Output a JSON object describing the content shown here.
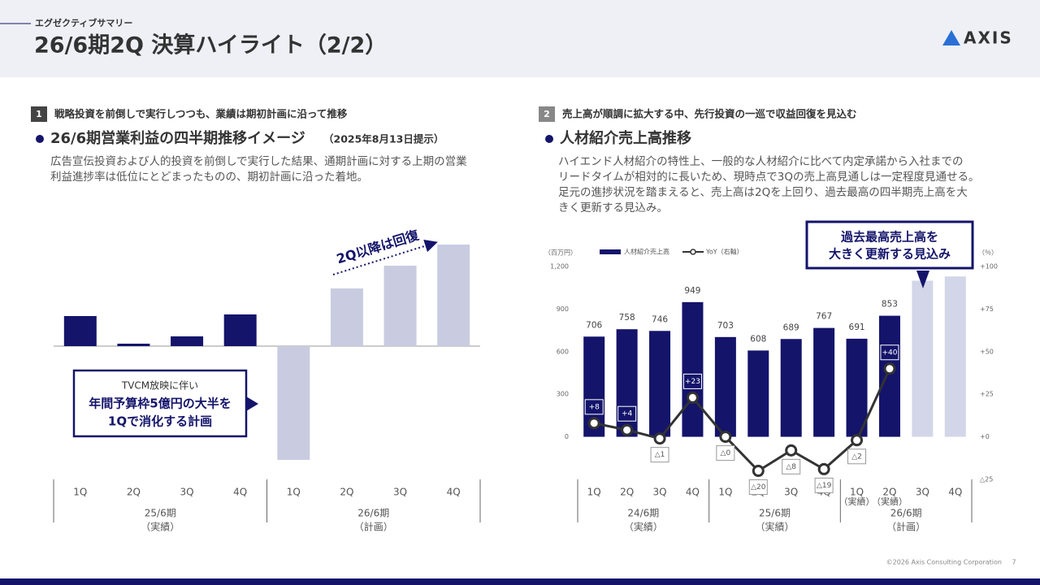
{
  "header": {
    "section": "エグゼクティブサマリー",
    "title": "26/6期2Q 決算ハイライト（2/2）",
    "logo": "AXIS"
  },
  "left": {
    "number": "1",
    "lead": "戦略投資を前倒しで実行しつつも、業績は期初計画に沿って推移",
    "heading": "26/6期営業利益の四半期推移イメージ",
    "heading_note": "（2025年8月13日提示）",
    "body": [
      "広告宣伝投資および人的投資を前倒しで実行した結果、通期計画に対する上期の営業",
      "利益進捗率は低位にとどまったものの、期初計画に沿った着地。"
    ]
  },
  "right": {
    "number": "2",
    "lead": "売上高が順調に拡大する中、先行投資の一巡で収益回復を見込む",
    "heading": "人材紹介売上高推移",
    "body": [
      "ハイエンド人材紹介の特性上、一般的な人材紹介に比べて内定承諾から入社までの",
      "リードタイムが相対的に長いため、現時点で3Qの売上高見通しは一定程度見通せる。",
      "足元の進捗状況を踏まえると、売上高は2Qを上回り、過去最高の四半期売上高を大",
      "きく更新する見込み。"
    ]
  },
  "chart_data": [
    {
      "type": "bar",
      "categories": [
        "1Q",
        "2Q",
        "3Q",
        "4Q",
        "1Q",
        "2Q",
        "3Q",
        "4Q"
      ],
      "values": [
        37,
        3,
        12,
        39,
        -140,
        71,
        99,
        125
      ],
      "colors": [
        "#14146b",
        "#14146b",
        "#14146b",
        "#14146b",
        "#c9cce0",
        "#c9cce0",
        "#c9cce0",
        "#c9cce0"
      ],
      "groups": [
        {
          "label": "25/6期",
          "note": "（実績）"
        },
        {
          "label": "26/6期",
          "note": "（計画）"
        }
      ],
      "trend_label": "2Q以降は回復",
      "callout": [
        "TVCM放映に伴い",
        "年間予算枠5億円の大半を",
        "1Qで消化する計画"
      ]
    },
    {
      "type": "bar-line",
      "categories": [
        "1Q",
        "2Q",
        "3Q",
        "4Q",
        "1Q",
        "2Q",
        "3Q",
        "4Q",
        "1Q",
        "2Q",
        "3Q",
        "4Q"
      ],
      "category_notes": [
        null,
        null,
        null,
        null,
        null,
        null,
        null,
        null,
        "（実績）",
        "（実績）",
        null,
        null
      ],
      "groups": [
        {
          "label": "24/6期",
          "note": "（実績）"
        },
        {
          "label": "25/6期",
          "note": "（実績）"
        },
        {
          "label": "26/6期",
          "note": "（計画）"
        }
      ],
      "series": [
        {
          "name": "人材紹介売上高",
          "type": "bar",
          "colors": [
            "#14146b",
            "#14146b",
            "#14146b",
            "#14146b",
            "#14146b",
            "#14146b",
            "#14146b",
            "#14146b",
            "#14146b",
            "#14146b",
            "#d3d6e8",
            "#d3d6e8"
          ],
          "values": [
            706,
            758,
            746,
            949,
            703,
            608,
            689,
            767,
            691,
            853,
            1100,
            1130
          ],
          "value_labels": [
            "706",
            "758",
            "746",
            "949",
            "703",
            "608",
            "689",
            "767",
            "691",
            "853",
            null,
            null
          ]
        },
        {
          "name": "YoY（右軸）",
          "type": "line",
          "axis": "y2",
          "color": "#333333",
          "values": [
            8,
            4,
            -1,
            23,
            0,
            -20,
            -8,
            -19,
            -2,
            40,
            null,
            null
          ],
          "value_labels": [
            "+8",
            "+4",
            "△1",
            "+23",
            "△0",
            "△20",
            "△8",
            "△19",
            "△2",
            "+40",
            null,
            null
          ]
        }
      ],
      "y_unit": "（百万円）",
      "y2_unit": "（％）",
      "ylim": [
        -300,
        1200
      ],
      "yticks": [
        0,
        300,
        600,
        900,
        {
          "value": 1200,
          "label": "1,200"
        }
      ],
      "y2lim": [
        -25,
        100
      ],
      "y2ticks": [
        {
          "value": 100,
          "label": "+100"
        },
        {
          "value": 75,
          "label": "+75"
        },
        {
          "value": 50,
          "label": "+50"
        },
        {
          "value": 25,
          "label": "+25"
        },
        {
          "value": 0,
          "label": "+0"
        },
        {
          "value": -25,
          "label": "△25"
        }
      ],
      "callout": [
        "過去最高売上高を",
        "大きく更新する見込み"
      ]
    }
  ],
  "footer": {
    "copyright": "©2026 Axis Consulting Corporation",
    "page": "7"
  }
}
